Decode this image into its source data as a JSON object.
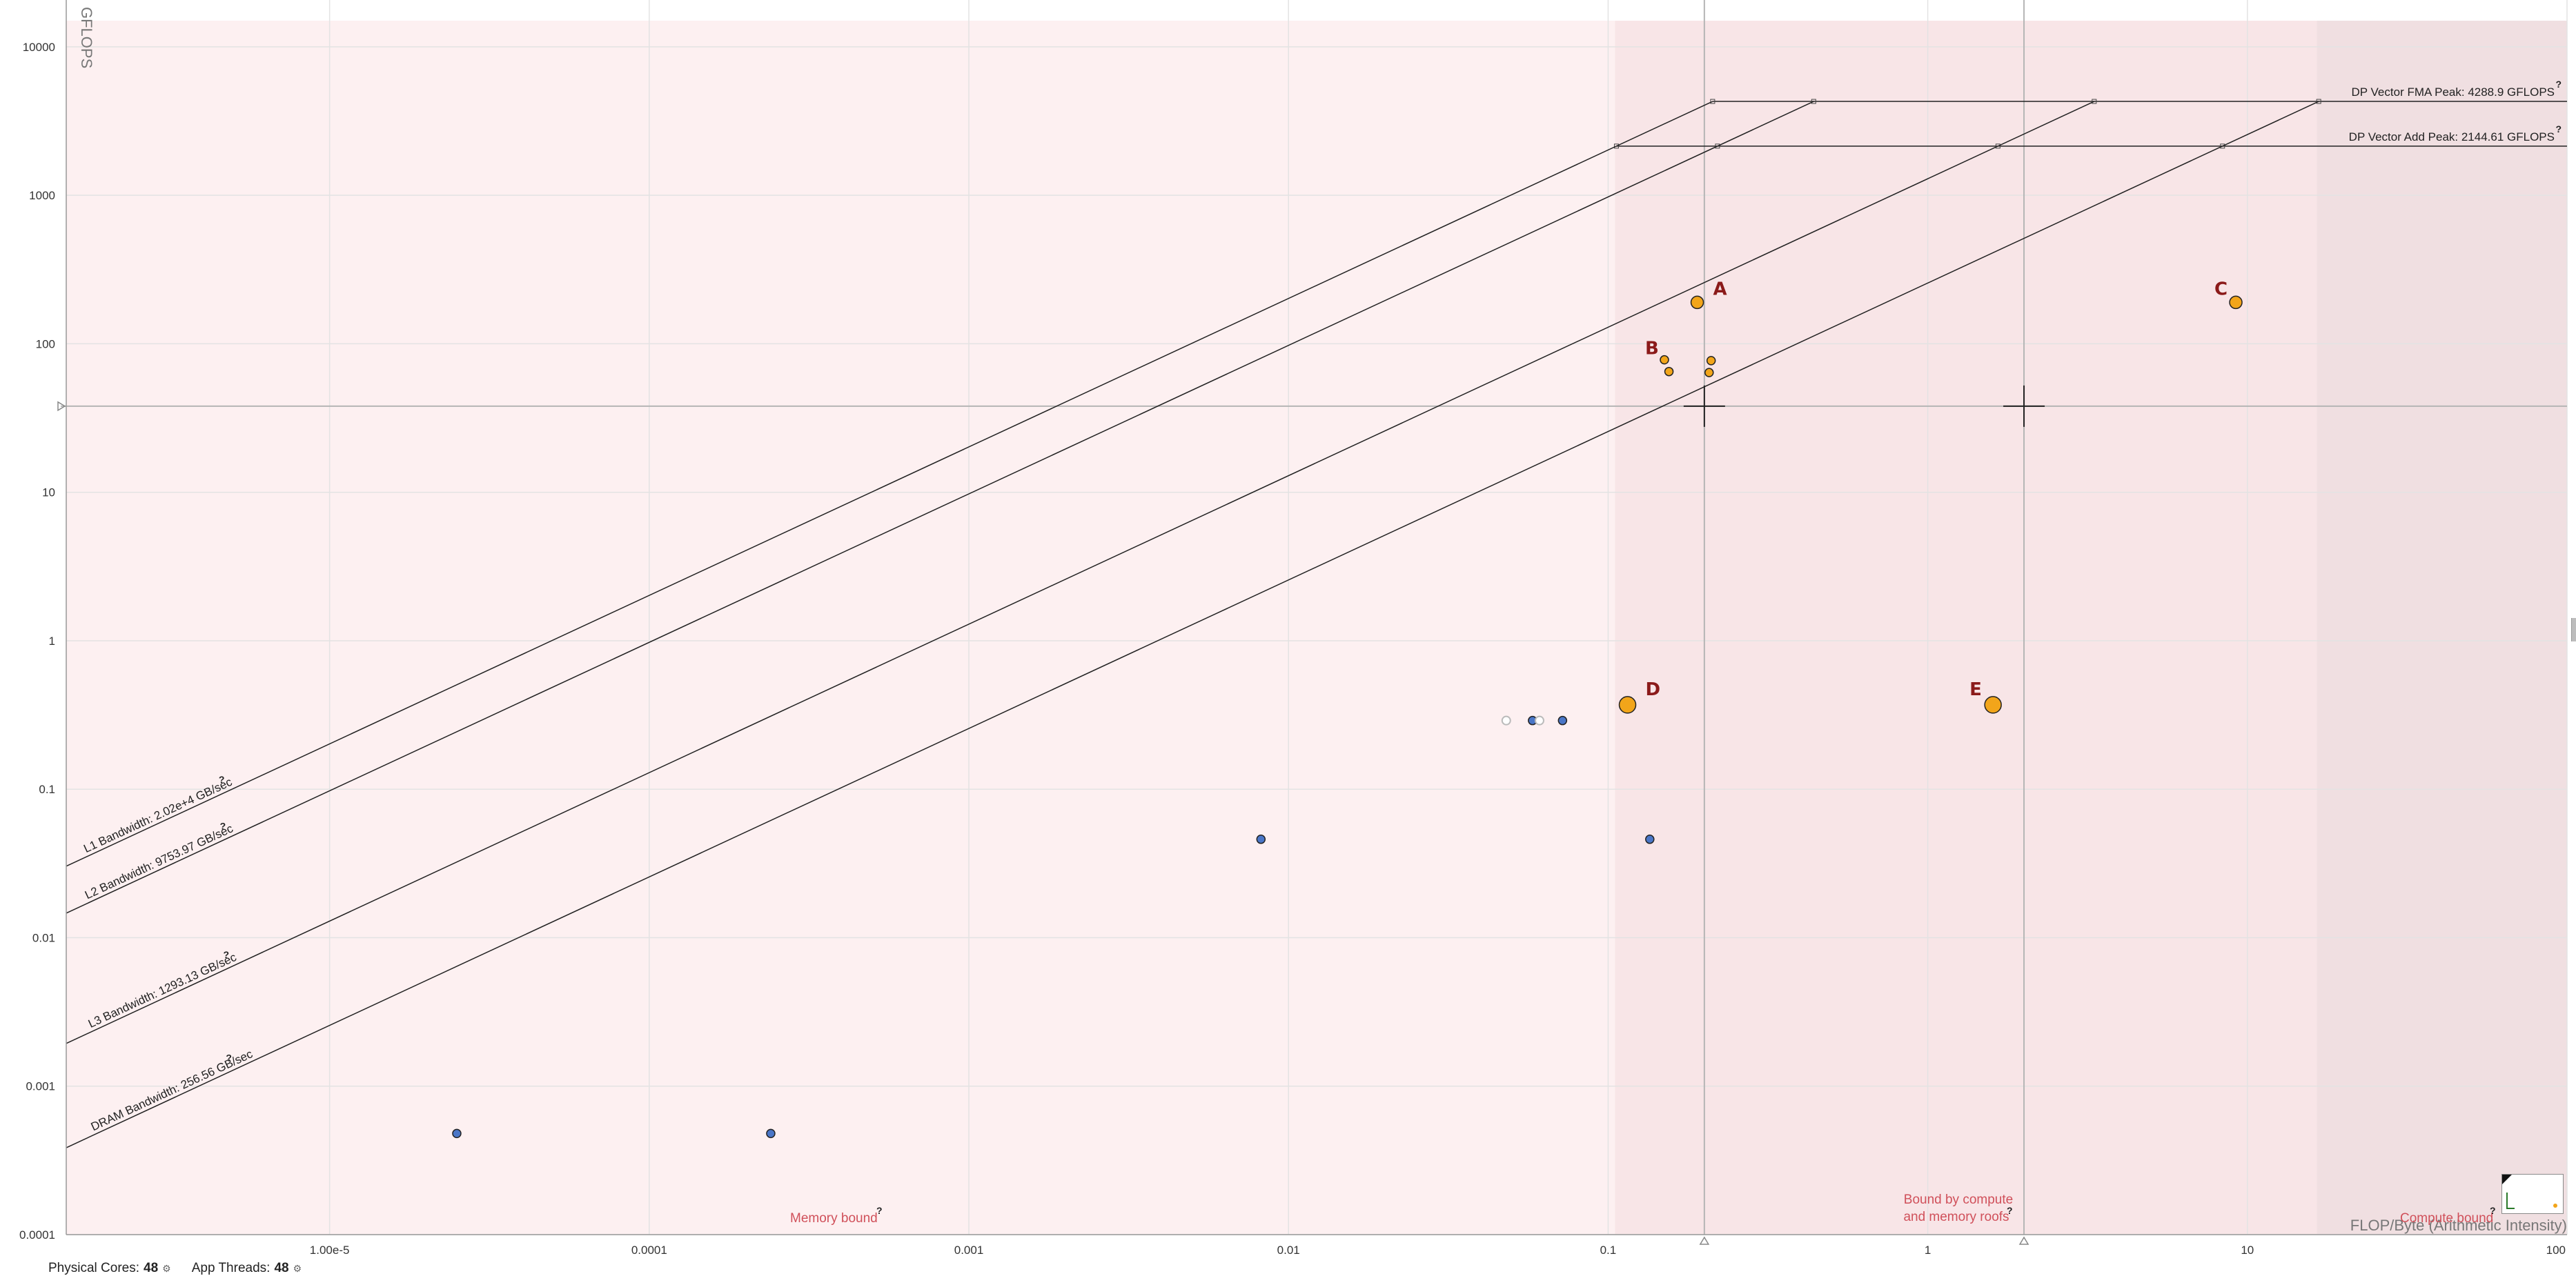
{
  "chart_data": {
    "type": "scatter",
    "title": "",
    "xlabel": "FLOP/Byte (Arithmetic Intensity)",
    "ylabel": "GFLOPS",
    "x_scale": "log",
    "y_scale": "log",
    "xlim": [
      1.5e-06,
      100
    ],
    "ylim": [
      0.0001,
      15000
    ],
    "grid": true,
    "x_ticks": [
      {
        "value": 1e-05,
        "label": "1.00e-5"
      },
      {
        "value": 0.0001,
        "label": "0.0001"
      },
      {
        "value": 0.001,
        "label": "0.001"
      },
      {
        "value": 0.01,
        "label": "0.01"
      },
      {
        "value": 0.1,
        "label": "0.1"
      },
      {
        "value": 1,
        "label": "1"
      },
      {
        "value": 10,
        "label": "10"
      },
      {
        "value": 100,
        "label": "100"
      }
    ],
    "y_ticks": [
      {
        "value": 0.0001,
        "label": "0.0001"
      },
      {
        "value": 0.001,
        "label": "0.001"
      },
      {
        "value": 0.01,
        "label": "0.01"
      },
      {
        "value": 0.1,
        "label": "0.1"
      },
      {
        "value": 1,
        "label": "1"
      },
      {
        "value": 10,
        "label": "10"
      },
      {
        "value": 100,
        "label": "100"
      },
      {
        "value": 1000,
        "label": "1000"
      },
      {
        "value": 10000,
        "label": "10000"
      }
    ],
    "compute_roofs": [
      {
        "label": "DP Vector FMA Peak: 4288.9 GFLOPS",
        "gflops": 4288.9
      },
      {
        "label": "DP Vector Add Peak: 2144.61 GFLOPS",
        "gflops": 2144.61
      }
    ],
    "memory_roofs": [
      {
        "label": "L1 Bandwidth: 2.02e+4 GB/sec",
        "gb_per_sec": 20200
      },
      {
        "label": "L2 Bandwidth: 9753.97 GB/sec",
        "gb_per_sec": 9753.97
      },
      {
        "label": "L3 Bandwidth: 1293.13 GB/sec",
        "gb_per_sec": 1293.13
      },
      {
        "label": "DRAM Bandwidth: 256.56 GB/sec",
        "gb_per_sec": 256.56
      }
    ],
    "reference_lines": {
      "x": [
        0.2,
        2.0
      ],
      "y": [
        38
      ]
    },
    "crosshairs": [
      {
        "x": 0.2,
        "y": 38
      },
      {
        "x": 2.0,
        "y": 38
      }
    ],
    "zones": [
      {
        "label": "Memory bound",
        "x_range": [
          1.5e-06,
          0.105
        ],
        "color": "#fdf0f1"
      },
      {
        "label": "Bound by compute\nand memory roofs",
        "x_range": [
          0.105,
          16.5
        ],
        "color": "#f8e5e7"
      },
      {
        "label": "Compute bound",
        "x_range": [
          16.5,
          100
        ],
        "color": "#f0dfe1"
      }
    ],
    "series": [
      {
        "color": "#f2a51a",
        "points": [
          {
            "x": 0.19,
            "y": 190,
            "size": "medium",
            "label": "A"
          },
          {
            "x": 0.15,
            "y": 78,
            "size": "small",
            "label": "B"
          },
          {
            "x": 0.155,
            "y": 65,
            "size": "small"
          },
          {
            "x": 0.21,
            "y": 77,
            "size": "small"
          },
          {
            "x": 0.207,
            "y": 64,
            "size": "small"
          },
          {
            "x": 9.2,
            "y": 190,
            "size": "medium",
            "label": "C"
          },
          {
            "x": 0.115,
            "y": 0.37,
            "size": "large",
            "label": "D"
          },
          {
            "x": 1.6,
            "y": 0.37,
            "size": "large",
            "label": "E"
          }
        ]
      },
      {
        "color": "#4a76c7",
        "points": [
          {
            "x": 0.058,
            "y": 0.29
          },
          {
            "x": 0.072,
            "y": 0.29
          },
          {
            "x": 0.0082,
            "y": 0.046
          },
          {
            "x": 0.135,
            "y": 0.046
          },
          {
            "x": 2.5e-05,
            "y": 0.00048
          },
          {
            "x": 0.00024,
            "y": 0.00048
          }
        ]
      },
      {
        "color": "#cccccc",
        "points": [
          {
            "x": 0.048,
            "y": 0.29,
            "hollow": true
          },
          {
            "x": 0.061,
            "y": 0.29,
            "hollow": true
          }
        ]
      }
    ]
  },
  "status": {
    "cores_label": "Physical Cores:",
    "cores_value": "48",
    "threads_label": "App Threads:",
    "threads_value": "48",
    "settings_icon": "gear-icon"
  }
}
